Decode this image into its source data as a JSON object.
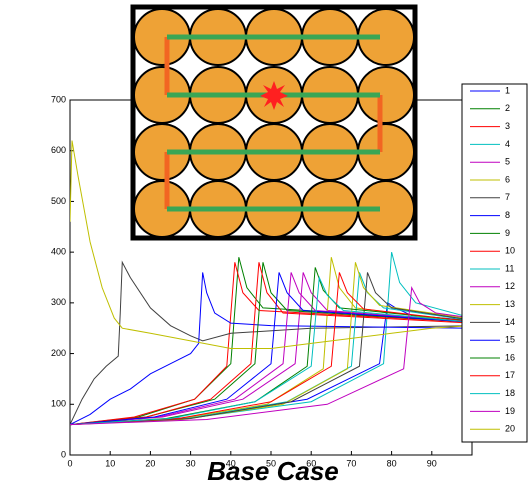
{
  "chart_data": {
    "type": "line",
    "title": "Base Case",
    "xlim": [
      0,
      100
    ],
    "xticks": [
      0,
      10,
      20,
      30,
      40,
      50,
      60,
      70,
      80,
      90
    ],
    "ylim": [
      0,
      700
    ],
    "yticks": [
      0,
      100,
      200,
      300,
      400,
      500,
      600,
      700
    ],
    "legend": "right",
    "series": [
      {
        "name": "1",
        "color": "#0000ff",
        "x": [
          0,
          32,
          59,
          77,
          79,
          81,
          85,
          100
        ],
        "values": [
          60,
          75,
          110,
          180,
          300,
          290,
          275,
          265
        ]
      },
      {
        "name": "2",
        "color": "#008000",
        "x": [
          0,
          17,
          31,
          40,
          42,
          44,
          48,
          100
        ],
        "values": [
          60,
          75,
          110,
          180,
          390,
          330,
          290,
          265
        ]
      },
      {
        "name": "3",
        "color": "#ff0000",
        "x": [
          0,
          16,
          31,
          39,
          41,
          43,
          47,
          100
        ],
        "values": [
          60,
          75,
          110,
          175,
          380,
          320,
          285,
          262
        ]
      },
      {
        "name": "4",
        "color": "#00bfbf",
        "x": [
          0,
          32,
          60,
          78,
          80,
          82,
          86,
          100
        ],
        "values": [
          60,
          75,
          105,
          180,
          400,
          340,
          300,
          270
        ]
      },
      {
        "name": "5",
        "color": "#bf00bf",
        "x": [
          0,
          23,
          43,
          56,
          58,
          60,
          64,
          100
        ],
        "values": [
          60,
          75,
          110,
          180,
          360,
          320,
          285,
          262
        ]
      },
      {
        "name": "6",
        "color": "#bfbf00",
        "x": [
          0,
          26,
          49,
          63,
          65,
          67,
          71,
          100
        ],
        "values": [
          60,
          70,
          100,
          170,
          390,
          330,
          290,
          260
        ]
      },
      {
        "name": "7",
        "color": "#404040",
        "x": [
          0,
          3,
          6,
          9,
          12,
          12.5,
          13,
          15,
          20,
          25,
          30,
          33,
          40,
          60,
          100
        ],
        "values": [
          60,
          110,
          150,
          175,
          195,
          280,
          380,
          350,
          290,
          255,
          235,
          225,
          240,
          250,
          255
        ]
      },
      {
        "name": "8",
        "color": "#0000ff",
        "x": [
          0,
          5,
          10,
          15,
          20,
          25,
          30,
          32,
          33,
          34,
          36,
          40,
          50,
          100
        ],
        "values": [
          60,
          80,
          110,
          130,
          160,
          180,
          200,
          220,
          360,
          320,
          280,
          260,
          255,
          250
        ]
      },
      {
        "name": "9",
        "color": "#008000",
        "x": [
          0,
          19,
          36,
          46,
          48,
          50,
          54,
          100
        ],
        "values": [
          60,
          75,
          110,
          180,
          380,
          320,
          285,
          262
        ]
      },
      {
        "name": "10",
        "color": "#ff0000",
        "x": [
          0,
          19,
          35,
          45,
          47,
          49,
          53,
          100
        ],
        "values": [
          60,
          75,
          110,
          180,
          380,
          320,
          280,
          260
        ]
      },
      {
        "name": "11",
        "color": "#00bfbf",
        "x": [
          0,
          29,
          54,
          70,
          72,
          74,
          78,
          100
        ],
        "values": [
          60,
          72,
          105,
          175,
          360,
          320,
          290,
          265
        ]
      },
      {
        "name": "12",
        "color": "#bf00bf",
        "x": [
          0,
          22,
          41,
          53,
          55,
          57,
          61,
          100
        ],
        "values": [
          60,
          75,
          110,
          180,
          360,
          320,
          285,
          262
        ]
      },
      {
        "name": "13",
        "color": "#bfbf00",
        "x": [
          0,
          28,
          53,
          69,
          71,
          73,
          77,
          100
        ],
        "values": [
          60,
          70,
          100,
          170,
          380,
          330,
          295,
          268
        ]
      },
      {
        "name": "14",
        "color": "#404040",
        "x": [
          0,
          30,
          55,
          72,
          74,
          76,
          80,
          100
        ],
        "values": [
          60,
          72,
          105,
          175,
          360,
          320,
          290,
          266
        ]
      },
      {
        "name": "15",
        "color": "#0000ff",
        "x": [
          0,
          21,
          39,
          50,
          52,
          54,
          58,
          100
        ],
        "values": [
          60,
          75,
          110,
          180,
          360,
          320,
          285,
          262
        ]
      },
      {
        "name": "16",
        "color": "#008000",
        "x": [
          0,
          24,
          46,
          59,
          61,
          63,
          67,
          100
        ],
        "values": [
          60,
          72,
          105,
          175,
          370,
          325,
          290,
          264
        ]
      },
      {
        "name": "17",
        "color": "#ff0000",
        "x": [
          0,
          27,
          50,
          65,
          67,
          69,
          73,
          100
        ],
        "values": [
          60,
          72,
          105,
          175,
          360,
          320,
          288,
          263
        ]
      },
      {
        "name": "18",
        "color": "#00bfbf",
        "x": [
          0,
          25,
          46,
          60,
          62,
          64,
          68,
          100
        ],
        "values": [
          60,
          72,
          105,
          175,
          350,
          315,
          285,
          262
        ]
      },
      {
        "name": "19",
        "color": "#bf00bf",
        "x": [
          0,
          34,
          64,
          83,
          85,
          87,
          91,
          100
        ],
        "values": [
          60,
          70,
          100,
          170,
          330,
          300,
          280,
          270
        ]
      },
      {
        "name": "20",
        "color": "#bfbf00",
        "x": [
          0,
          0.5,
          2,
          5,
          8,
          11,
          13,
          20,
          30,
          40,
          50,
          60,
          70,
          80,
          90,
          100
        ],
        "values": [
          460,
          620,
          550,
          420,
          330,
          270,
          250,
          240,
          225,
          210,
          210,
          220,
          230,
          240,
          250,
          255
        ]
      }
    ]
  }
}
